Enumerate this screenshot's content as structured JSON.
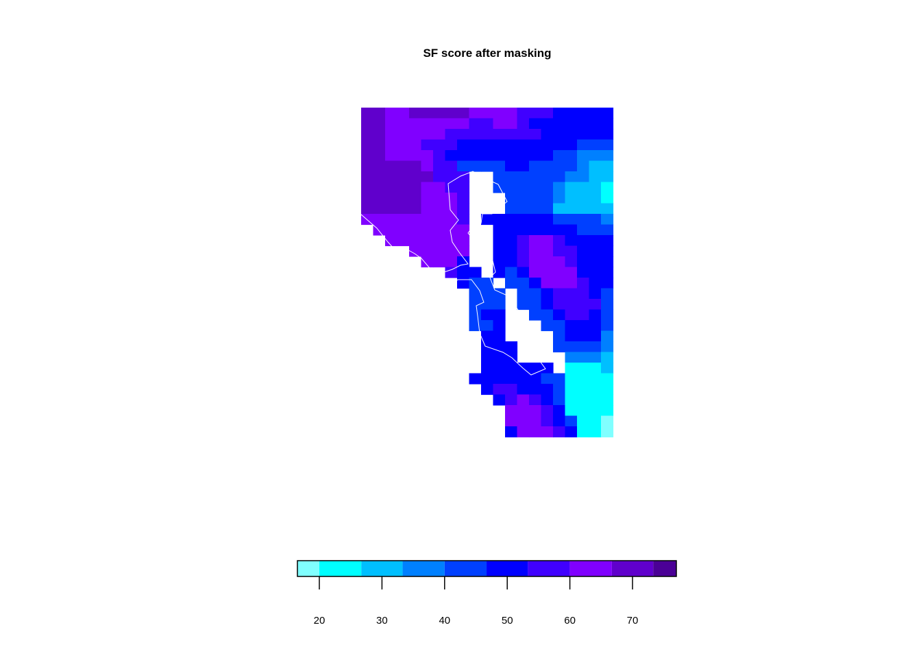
{
  "chart_data": {
    "type": "heatmap",
    "title": "SF score after masking",
    "colorbar": {
      "breaks": [
        16.5,
        20,
        26.7,
        33.3,
        40,
        46.7,
        53.3,
        60,
        66.7,
        73.3,
        77
      ],
      "colors": [
        "#80ffff",
        "#00ffff",
        "#00bfff",
        "#0080ff",
        "#0040ff",
        "#0000ff",
        "#4000ff",
        "#8000ff",
        "#6000cc",
        "#4b0096"
      ],
      "ticks": [
        20,
        30,
        40,
        50,
        60,
        70
      ],
      "tick_labels": [
        "20",
        "30",
        "40",
        "50",
        "60",
        "70"
      ]
    },
    "grid_values": [
      [
        72,
        72,
        65,
        65,
        68,
        70,
        68,
        68,
        68,
        64,
        62,
        62,
        64,
        58,
        58,
        58,
        52,
        52,
        52,
        52,
        52
      ],
      [
        72,
        72,
        65,
        62,
        62,
        64,
        64,
        62,
        62,
        58,
        58,
        62,
        62,
        58,
        52,
        52,
        52,
        52,
        52,
        52,
        52
      ],
      [
        72,
        72,
        65,
        62,
        62,
        62,
        60,
        58,
        56,
        56,
        54,
        54,
        56,
        56,
        54,
        52,
        52,
        52,
        48,
        48,
        48
      ],
      [
        72,
        72,
        65,
        65,
        62,
        58,
        56,
        56,
        52,
        52,
        52,
        52,
        52,
        52,
        50,
        50,
        48,
        48,
        45,
        45,
        42
      ],
      [
        72,
        72,
        65,
        65,
        65,
        64,
        58,
        52,
        52,
        50,
        50,
        52,
        52,
        48,
        48,
        48,
        45,
        42,
        38,
        38,
        34
      ],
      [
        72,
        72,
        70,
        68,
        68,
        66,
        58,
        56,
        46,
        44,
        44,
        44,
        52,
        52,
        46,
        46,
        42,
        40,
        36,
        32,
        32
      ],
      [
        70,
        70,
        68,
        68,
        68,
        68,
        58,
        56,
        54,
        null,
        null,
        44,
        44,
        44,
        44,
        44,
        40,
        36,
        34,
        30,
        30
      ],
      [
        70,
        70,
        68,
        68,
        68,
        66,
        64,
        56,
        54,
        null,
        null,
        44,
        44,
        44,
        44,
        44,
        36,
        32,
        30,
        30,
        22
      ],
      [
        70,
        70,
        68,
        68,
        68,
        66,
        64,
        60,
        54,
        null,
        null,
        null,
        44,
        44,
        44,
        44,
        36,
        32,
        30,
        30,
        22
      ],
      [
        68,
        68,
        68,
        68,
        68,
        66,
        64,
        62,
        54,
        null,
        null,
        null,
        44,
        44,
        44,
        44,
        32,
        32,
        32,
        32,
        30
      ],
      [
        66,
        66,
        66,
        66,
        66,
        66,
        64,
        62,
        56,
        null,
        50,
        48,
        48,
        48,
        48,
        48,
        40,
        40,
        40,
        40,
        34
      ],
      [
        null,
        64,
        64,
        66,
        66,
        66,
        64,
        62,
        60,
        null,
        null,
        50,
        50,
        52,
        52,
        50,
        48,
        48,
        40,
        44,
        44
      ],
      [
        null,
        null,
        62,
        62,
        62,
        62,
        62,
        62,
        60,
        null,
        null,
        50,
        50,
        54,
        60,
        60,
        56,
        48,
        48,
        50,
        50
      ],
      [
        null,
        null,
        null,
        null,
        62,
        62,
        62,
        60,
        60,
        null,
        null,
        50,
        50,
        56,
        62,
        62,
        56,
        54,
        50,
        50,
        50
      ],
      [
        null,
        null,
        null,
        null,
        null,
        62,
        62,
        60,
        50,
        null,
        null,
        50,
        50,
        56,
        62,
        62,
        62,
        56,
        52,
        50,
        50
      ],
      [
        null,
        null,
        null,
        null,
        null,
        null,
        null,
        56,
        50,
        52,
        null,
        50,
        46,
        48,
        60,
        62,
        60,
        60,
        52,
        50,
        50
      ],
      [
        null,
        null,
        null,
        null,
        null,
        null,
        null,
        null,
        50,
        46,
        42,
        null,
        44,
        46,
        52,
        60,
        60,
        60,
        56,
        52,
        50
      ],
      [
        null,
        null,
        null,
        null,
        null,
        null,
        null,
        null,
        null,
        42,
        40,
        40,
        null,
        44,
        44,
        52,
        56,
        58,
        56,
        52,
        46
      ],
      [
        null,
        null,
        null,
        null,
        null,
        null,
        null,
        null,
        null,
        40,
        40,
        40,
        null,
        44,
        44,
        48,
        56,
        58,
        56,
        54,
        46
      ],
      [
        null,
        null,
        null,
        null,
        null,
        null,
        null,
        null,
        null,
        40,
        48,
        48,
        null,
        null,
        46,
        46,
        50,
        56,
        56,
        52,
        46
      ],
      [
        null,
        null,
        null,
        null,
        null,
        null,
        null,
        null,
        null,
        40,
        40,
        48,
        null,
        null,
        null,
        40,
        44,
        52,
        52,
        50,
        42
      ],
      [
        null,
        null,
        null,
        null,
        null,
        null,
        null,
        null,
        null,
        null,
        48,
        48,
        null,
        null,
        null,
        null,
        40,
        50,
        50,
        48,
        38
      ],
      [
        null,
        null,
        null,
        null,
        null,
        null,
        null,
        null,
        null,
        null,
        48,
        48,
        48,
        null,
        null,
        null,
        40,
        40,
        40,
        40,
        38
      ],
      [
        null,
        null,
        null,
        null,
        null,
        null,
        null,
        null,
        null,
        null,
        48,
        50,
        48,
        null,
        null,
        null,
        null,
        38,
        36,
        36,
        32
      ],
      [
        null,
        null,
        null,
        null,
        null,
        null,
        null,
        null,
        null,
        null,
        52,
        52,
        52,
        50,
        52,
        50,
        null,
        26,
        26,
        26,
        30
      ],
      [
        null,
        null,
        null,
        null,
        null,
        null,
        null,
        null,
        null,
        50,
        52,
        52,
        52,
        52,
        50,
        44,
        40,
        24,
        24,
        22,
        24
      ],
      [
        null,
        null,
        null,
        null,
        null,
        null,
        null,
        null,
        null,
        null,
        52,
        56,
        56,
        50,
        50,
        48,
        40,
        24,
        22,
        22,
        22
      ],
      [
        null,
        null,
        null,
        null,
        null,
        null,
        null,
        null,
        null,
        null,
        null,
        52,
        58,
        60,
        54,
        52,
        44,
        22,
        22,
        22,
        22
      ],
      [
        null,
        null,
        null,
        null,
        null,
        null,
        null,
        null,
        null,
        null,
        null,
        null,
        64,
        64,
        60,
        54,
        48,
        24,
        22,
        20,
        22
      ],
      [
        null,
        null,
        null,
        null,
        null,
        null,
        null,
        null,
        null,
        null,
        null,
        null,
        64,
        64,
        64,
        58,
        52,
        44,
        22,
        20,
        18
      ],
      [
        null,
        null,
        null,
        null,
        null,
        null,
        null,
        null,
        null,
        null,
        null,
        null,
        52,
        62,
        64,
        60,
        56,
        52,
        24,
        24,
        18
      ]
    ]
  }
}
